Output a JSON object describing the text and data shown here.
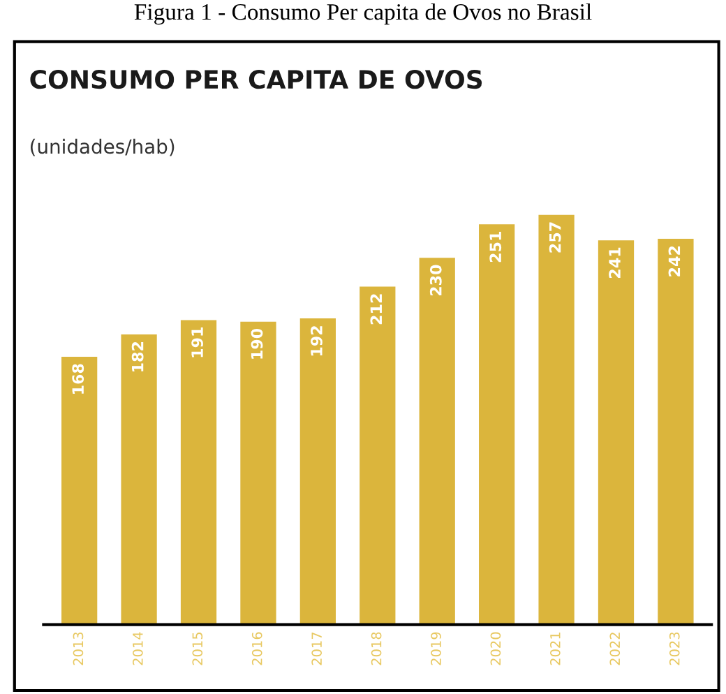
{
  "chart_data": {
    "type": "bar",
    "title": "CONSUMO PER CAPITA DE OVOS",
    "subtitle": "(unidades/hab)",
    "annotations": [
      "Figura 1 - Consumo Per capita de Ovos no Brasil"
    ],
    "categories": [
      "2013",
      "2014",
      "2015",
      "2016",
      "2017",
      "2018",
      "2019",
      "2020",
      "2021",
      "2022",
      "2023"
    ],
    "values": [
      168,
      182,
      191,
      190,
      192,
      212,
      230,
      251,
      257,
      241,
      242
    ],
    "color": "#dbb53c",
    "data_labels": true,
    "grid": false,
    "legend": false
  }
}
